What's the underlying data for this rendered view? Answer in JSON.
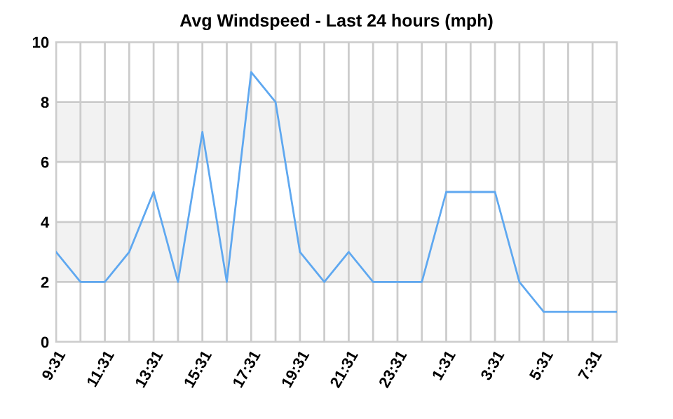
{
  "chart_data": {
    "type": "line",
    "title": "Avg Windspeed - Last 24 hours (mph)",
    "categories": [
      "9:31",
      null,
      "11:31",
      null,
      "13:31",
      null,
      "15:31",
      null,
      "17:31",
      null,
      "19:31",
      null,
      "21:31",
      null,
      "23:31",
      null,
      "1:31",
      null,
      "3:31",
      null,
      "5:31",
      null,
      "7:31",
      null
    ],
    "series": [
      {
        "color": "#5fa8f0",
        "values": [
          3,
          2,
          2,
          3,
          5,
          2,
          7,
          2,
          9,
          8,
          3,
          2,
          3,
          2,
          2,
          2,
          5,
          5,
          5,
          2,
          1,
          1,
          1,
          1
        ]
      }
    ],
    "ylim": [
      0,
      10
    ],
    "yticks": [
      0,
      2,
      4,
      6,
      8,
      10
    ],
    "grid": true,
    "legend": false,
    "marker": "none",
    "line_style": "solid",
    "bands": [
      {
        "axis": "y",
        "from": 2,
        "to": 4,
        "color": "#f2f2f2"
      },
      {
        "axis": "y",
        "from": 6,
        "to": 8,
        "color": "#f2f2f2"
      }
    ]
  }
}
